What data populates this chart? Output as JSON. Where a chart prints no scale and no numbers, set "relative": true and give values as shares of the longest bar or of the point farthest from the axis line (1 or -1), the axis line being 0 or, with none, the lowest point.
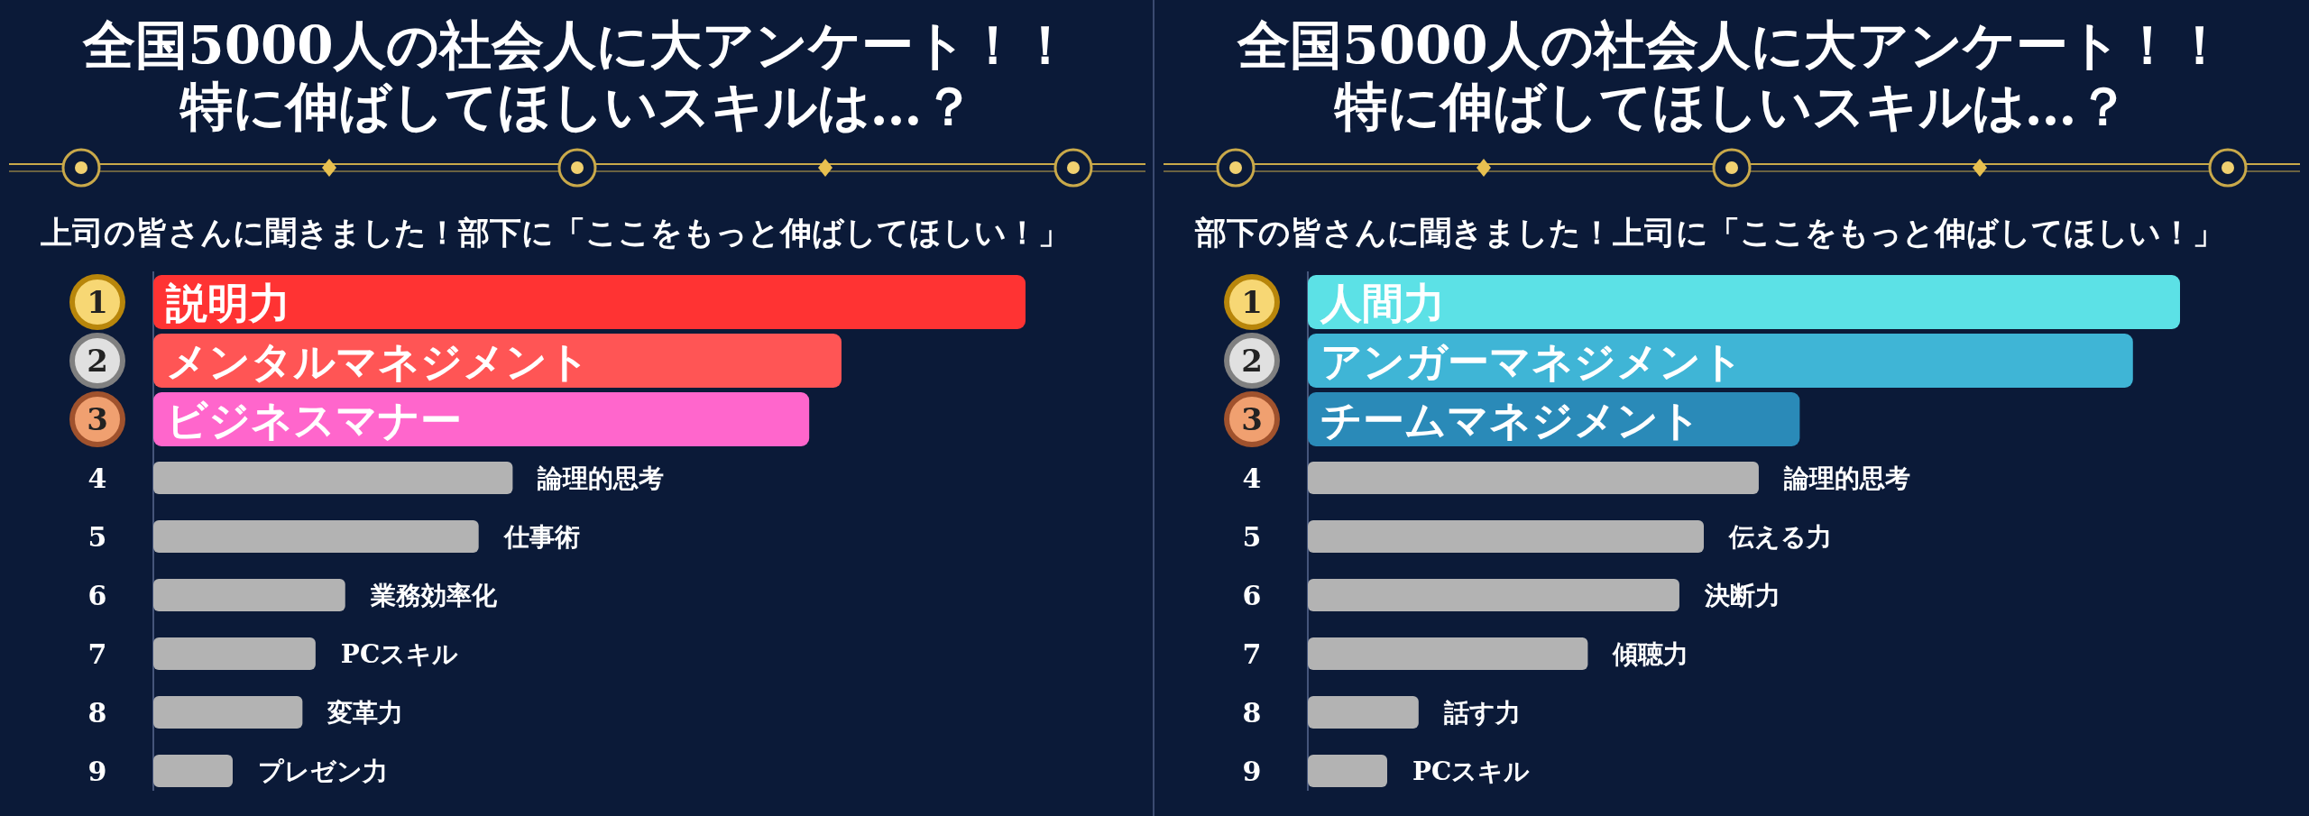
{
  "chart_data": [
    {
      "type": "bar",
      "orientation": "horizontal",
      "relative": true,
      "title": "全国5000人の社会人に大アンケート！！特に伸ばしてほしいスキルは…？",
      "subtitle": "上司の皆さんに聞きました！部下に「ここをもっと伸ばしてほしい！」",
      "categories": [
        "説明力",
        "メンタルマネジメント",
        "ビジネスマナー",
        "論理的思考",
        "仕事術",
        "業務効率化",
        "PCスキル",
        "変革力",
        "プレゼン力"
      ],
      "values": [
        1,
        0.789,
        0.752,
        0.412,
        0.373,
        0.22,
        0.186,
        0.171,
        0.091
      ],
      "colors": [
        "#ff3333",
        "#ff5555",
        "#ff66cc",
        "#b3b3b3",
        "#b3b3b3",
        "#b3b3b3",
        "#b3b3b3",
        "#b3b3b3",
        "#b3b3b3"
      ],
      "annotations": [
        "1",
        "2",
        "3",
        "4",
        "5",
        "6",
        "7",
        "8",
        "9"
      ]
    },
    {
      "type": "bar",
      "orientation": "horizontal",
      "relative": true,
      "title": "全国5000人の社会人に大アンケート！！特に伸ばしてほしいスキルは…？",
      "subtitle": "部下の皆さんに聞きました！上司に「ここをもっと伸ばしてほしい！」",
      "categories": [
        "人間力",
        "アンガーマネジメント",
        "チームマネジメント",
        "論理的思考",
        "伝える力",
        "決断力",
        "傾聴力",
        "話す力",
        "PCスキル"
      ],
      "values": [
        1,
        0.946,
        0.564,
        0.517,
        0.454,
        0.426,
        0.321,
        0.127,
        0.091
      ],
      "colors": [
        "#5ce1e6",
        "#3fb5d6",
        "#2a8ab8",
        "#b3b3b3",
        "#b3b3b3",
        "#b3b3b3",
        "#b3b3b3",
        "#b3b3b3",
        "#b3b3b3"
      ],
      "annotations": [
        "1",
        "2",
        "3",
        "4",
        "5",
        "6",
        "7",
        "8",
        "9"
      ]
    }
  ]
}
